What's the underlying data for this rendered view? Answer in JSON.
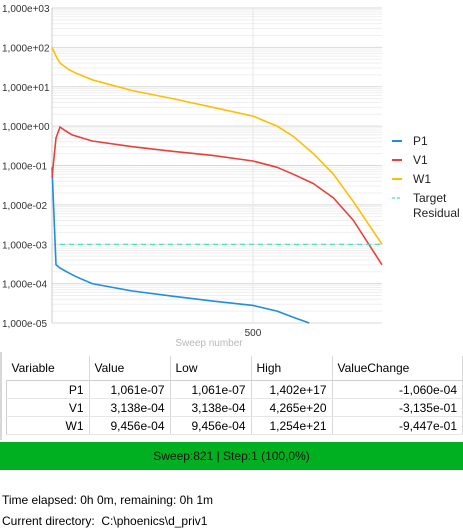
{
  "chart_data": {
    "type": "line",
    "xlabel": "Sweep number",
    "ylabel": "",
    "x_scale": "linear",
    "y_scale": "log",
    "xlim": [
      0,
      821
    ],
    "ylim": [
      1e-05,
      1000
    ],
    "x_ticks": [
      {
        "value": 500,
        "label": "500"
      }
    ],
    "y_ticks": [
      {
        "value": 1000,
        "label": "1,000e+03"
      },
      {
        "value": 100,
        "label": "1,000e+02"
      },
      {
        "value": 10,
        "label": "1,000e+01"
      },
      {
        "value": 1,
        "label": "1,000e+00"
      },
      {
        "value": 0.1,
        "label": "1,000e-01"
      },
      {
        "value": 0.01,
        "label": "1,000e-02"
      },
      {
        "value": 0.001,
        "label": "1,000e-03"
      },
      {
        "value": 0.0001,
        "label": "1,000e-04"
      },
      {
        "value": 1e-05,
        "label": "1,000e-05"
      }
    ],
    "grid": true,
    "legend_position": "right",
    "series": [
      {
        "name": "P1",
        "color": "#1f8ee0",
        "style": "solid",
        "x": [
          0,
          10,
          20,
          40,
          60,
          100,
          150,
          200,
          300,
          400,
          500,
          560,
          600,
          640
        ],
        "y": [
          0.09,
          0.0003,
          0.00025,
          0.00019,
          0.00015,
          0.0001,
          8e-05,
          6.5e-05,
          4.8e-05,
          3.6e-05,
          2.8e-05,
          2e-05,
          1.4e-05,
          1e-05
        ]
      },
      {
        "name": "V1",
        "color": "#e8403a",
        "style": "solid",
        "x": [
          0,
          10,
          20,
          30,
          50,
          100,
          200,
          300,
          400,
          500,
          560,
          600,
          650,
          700,
          750,
          821
        ],
        "y": [
          0.05,
          0.5,
          0.95,
          0.8,
          0.6,
          0.42,
          0.3,
          0.23,
          0.18,
          0.13,
          0.09,
          0.06,
          0.035,
          0.015,
          0.004,
          0.0003
        ]
      },
      {
        "name": "W1",
        "color": "#ffbe00",
        "style": "solid",
        "x": [
          0,
          10,
          20,
          40,
          60,
          100,
          200,
          300,
          400,
          500,
          560,
          600,
          650,
          700,
          750,
          821
        ],
        "y": [
          100,
          60,
          40,
          28,
          22,
          15,
          8,
          5,
          3,
          1.8,
          1.0,
          0.55,
          0.2,
          0.06,
          0.012,
          0.001
        ]
      },
      {
        "name": "Target\nResidual",
        "color": "#40e0c0",
        "style": "dashed",
        "x": [
          20,
          821
        ],
        "y": [
          0.001,
          0.001
        ]
      }
    ]
  },
  "table": {
    "headers": [
      "Variable",
      "Value",
      "Low",
      "High",
      "ValueChange"
    ],
    "rows": [
      [
        "P1",
        "1,061e-07",
        "1,061e-07",
        "1,402e+17",
        "-1,060e-04"
      ],
      [
        "V1",
        "3,138e-04",
        "3,138e-04",
        "4,265e+20",
        "-3,135e-01"
      ],
      [
        "W1",
        "9,456e-04",
        "9,456e-04",
        "1,254e+21",
        "-9,447e-01"
      ]
    ]
  },
  "status": {
    "text": "Sweep:821 | Step:1  (100,0%)",
    "progress": 1.0,
    "color": "#00b020"
  },
  "footer": {
    "time_elapsed": "Time elapsed: 0h 0m, remaining: 0h 1m",
    "current_directory": "Current directory:  C:\\phoenics\\d_priv1"
  }
}
